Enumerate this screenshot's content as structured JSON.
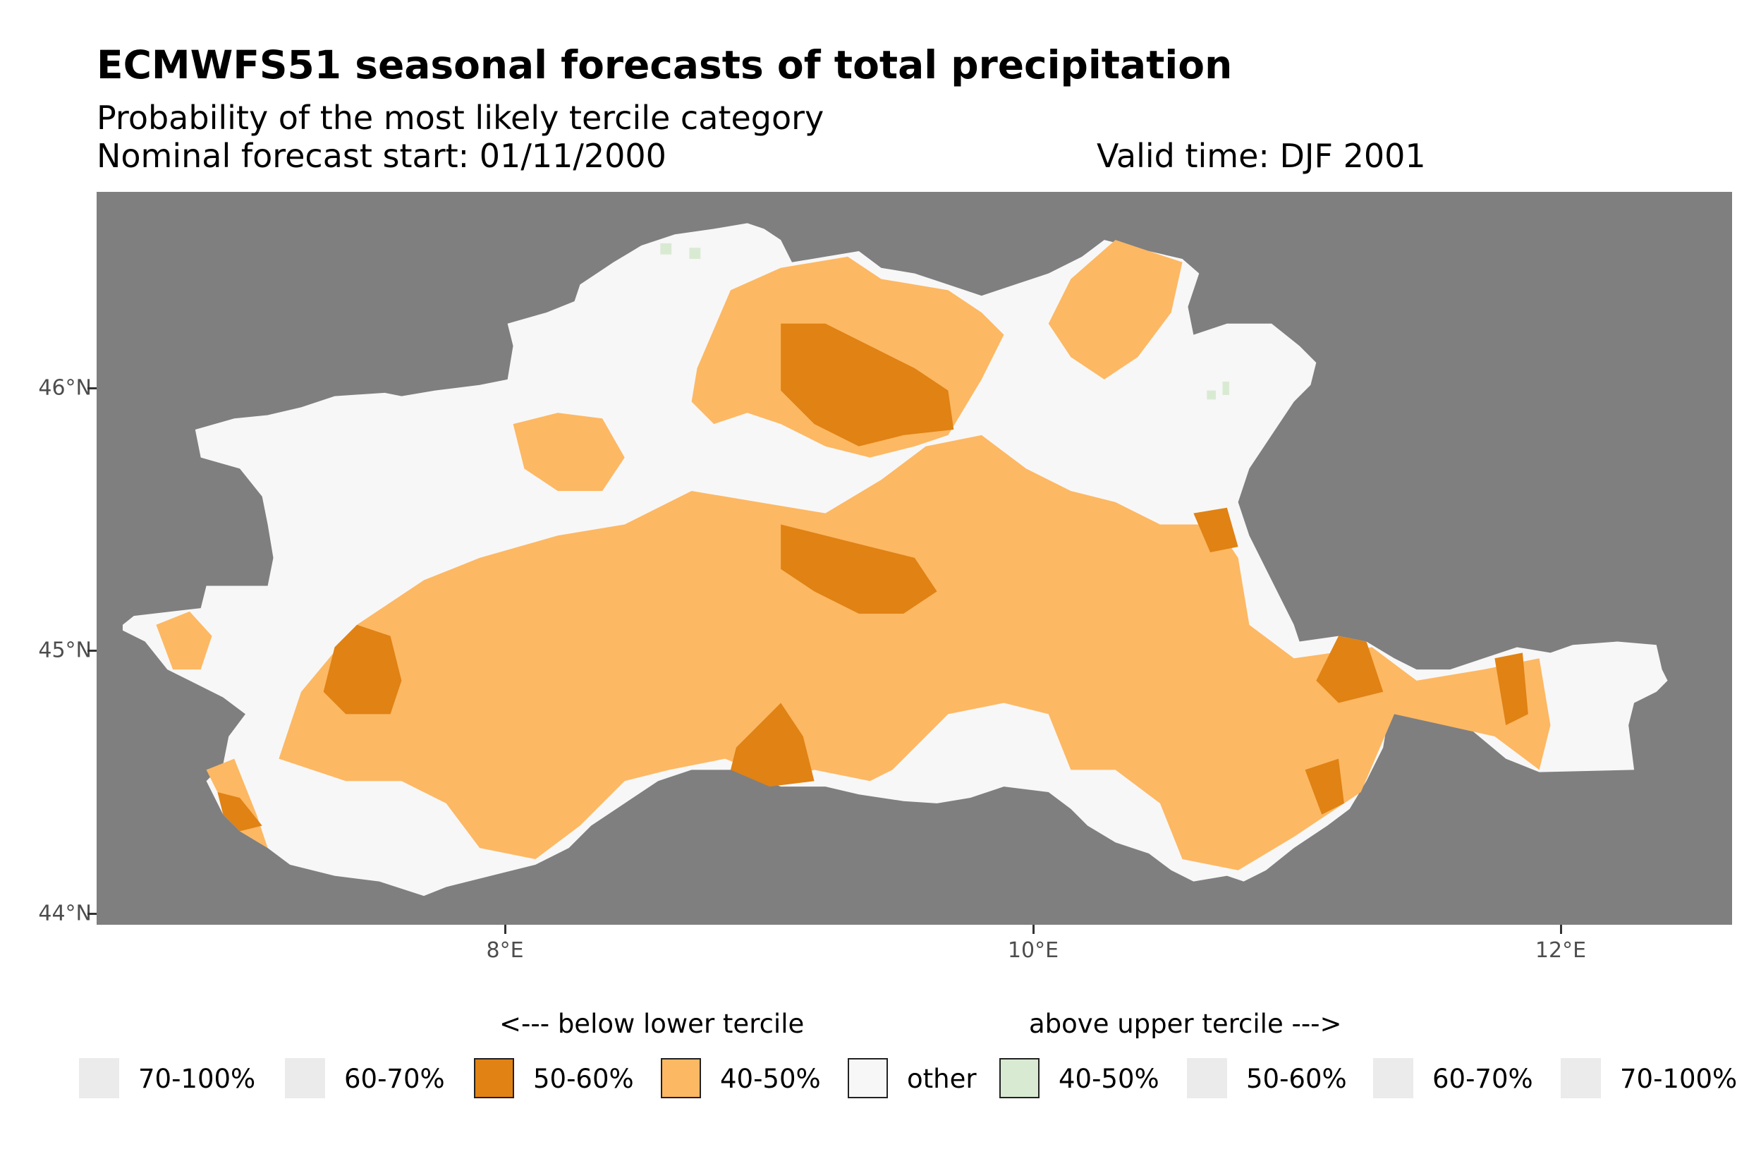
{
  "header": {
    "title": "ECMWFS51 seasonal forecasts of total precipitation",
    "subtitle": "Probability of the most likely tercile category",
    "forecast_start": "Nominal forecast start: 01/11/2000",
    "valid_time": "Valid time: DJF 2001"
  },
  "chart_data": {
    "type": "heatmap",
    "title": "ECMWFS51 seasonal forecasts of total precipitation",
    "subtitle": "Probability of the most likely tercile category",
    "xlabel": "",
    "ylabel": "",
    "xlim": [
      6.45,
      12.65
    ],
    "ylim": [
      43.96,
      46.75
    ],
    "x_ticks": [
      "8°E",
      "10°E",
      "12°E"
    ],
    "x_tick_values": [
      8,
      10,
      12
    ],
    "y_ticks": [
      "44°N",
      "45°N",
      "46°N"
    ],
    "y_tick_values": [
      44,
      45,
      46
    ],
    "background_color": "#7f7f7f",
    "legend_position": "bottom",
    "legend": {
      "below_heading": "<--- below lower tercile",
      "above_heading": "above upper tercile --->",
      "entries": [
        {
          "label": "70-100%",
          "color": "#ebebeb",
          "group": "below",
          "present": false
        },
        {
          "label": "60-70%",
          "color": "#ebebeb",
          "group": "below",
          "present": false
        },
        {
          "label": "50-60%",
          "color": "#e08214",
          "group": "below",
          "present": true
        },
        {
          "label": "40-50%",
          "color": "#fdb863",
          "group": "below",
          "present": true
        },
        {
          "label": "other",
          "color": "#f7f7f7",
          "group": "neutral",
          "present": true
        },
        {
          "label": "40-50%",
          "color": "#d9ead3",
          "group": "above",
          "present": true
        },
        {
          "label": "50-60%",
          "color": "#ebebeb",
          "group": "above",
          "present": false
        },
        {
          "label": "60-70%",
          "color": "#ebebeb",
          "group": "above",
          "present": false
        },
        {
          "label": "70-100%",
          "color": "#ebebeb",
          "group": "above",
          "present": false
        }
      ]
    }
  }
}
